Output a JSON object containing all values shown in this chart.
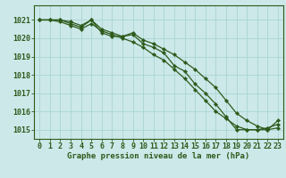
{
  "title": "Graphe pression niveau de la mer (hPa)",
  "bg_color": "#cce8e8",
  "grid_color": "#aad4d4",
  "line_color": "#2d5a1b",
  "marker_color": "#2d5a1b",
  "xlim": [
    -0.5,
    23.5
  ],
  "ylim": [
    1014.5,
    1021.8
  ],
  "yticks": [
    1015,
    1016,
    1017,
    1018,
    1019,
    1020,
    1021
  ],
  "xticks": [
    0,
    1,
    2,
    3,
    4,
    5,
    6,
    7,
    8,
    9,
    10,
    11,
    12,
    13,
    14,
    15,
    16,
    17,
    18,
    19,
    20,
    21,
    22,
    23
  ],
  "series1": [
    1021.0,
    1021.0,
    1021.0,
    1020.8,
    1020.6,
    1021.0,
    1020.3,
    1020.1,
    1020.1,
    1020.2,
    1019.7,
    1019.5,
    1019.2,
    1018.5,
    1018.2,
    1017.5,
    1017.0,
    1016.4,
    1015.7,
    1015.0,
    1015.0,
    1015.0,
    1015.1,
    1015.3
  ],
  "series2": [
    1021.0,
    1021.0,
    1020.9,
    1020.7,
    1020.5,
    1020.8,
    1020.4,
    1020.2,
    1020.0,
    1019.8,
    1019.5,
    1019.1,
    1018.8,
    1018.3,
    1017.8,
    1017.2,
    1016.6,
    1016.0,
    1015.6,
    1015.2,
    1015.0,
    1015.0,
    1015.0,
    1015.1
  ],
  "series3": [
    1021.0,
    1021.0,
    1021.0,
    1020.9,
    1020.7,
    1021.0,
    1020.5,
    1020.3,
    1020.1,
    1020.3,
    1019.9,
    1019.7,
    1019.4,
    1019.1,
    1018.7,
    1018.3,
    1017.8,
    1017.3,
    1016.6,
    1015.9,
    1015.5,
    1015.2,
    1015.0,
    1015.5
  ],
  "tick_fontsize": 6,
  "label_fontsize": 6.5,
  "linewidth": 0.9,
  "markersize": 2.2
}
